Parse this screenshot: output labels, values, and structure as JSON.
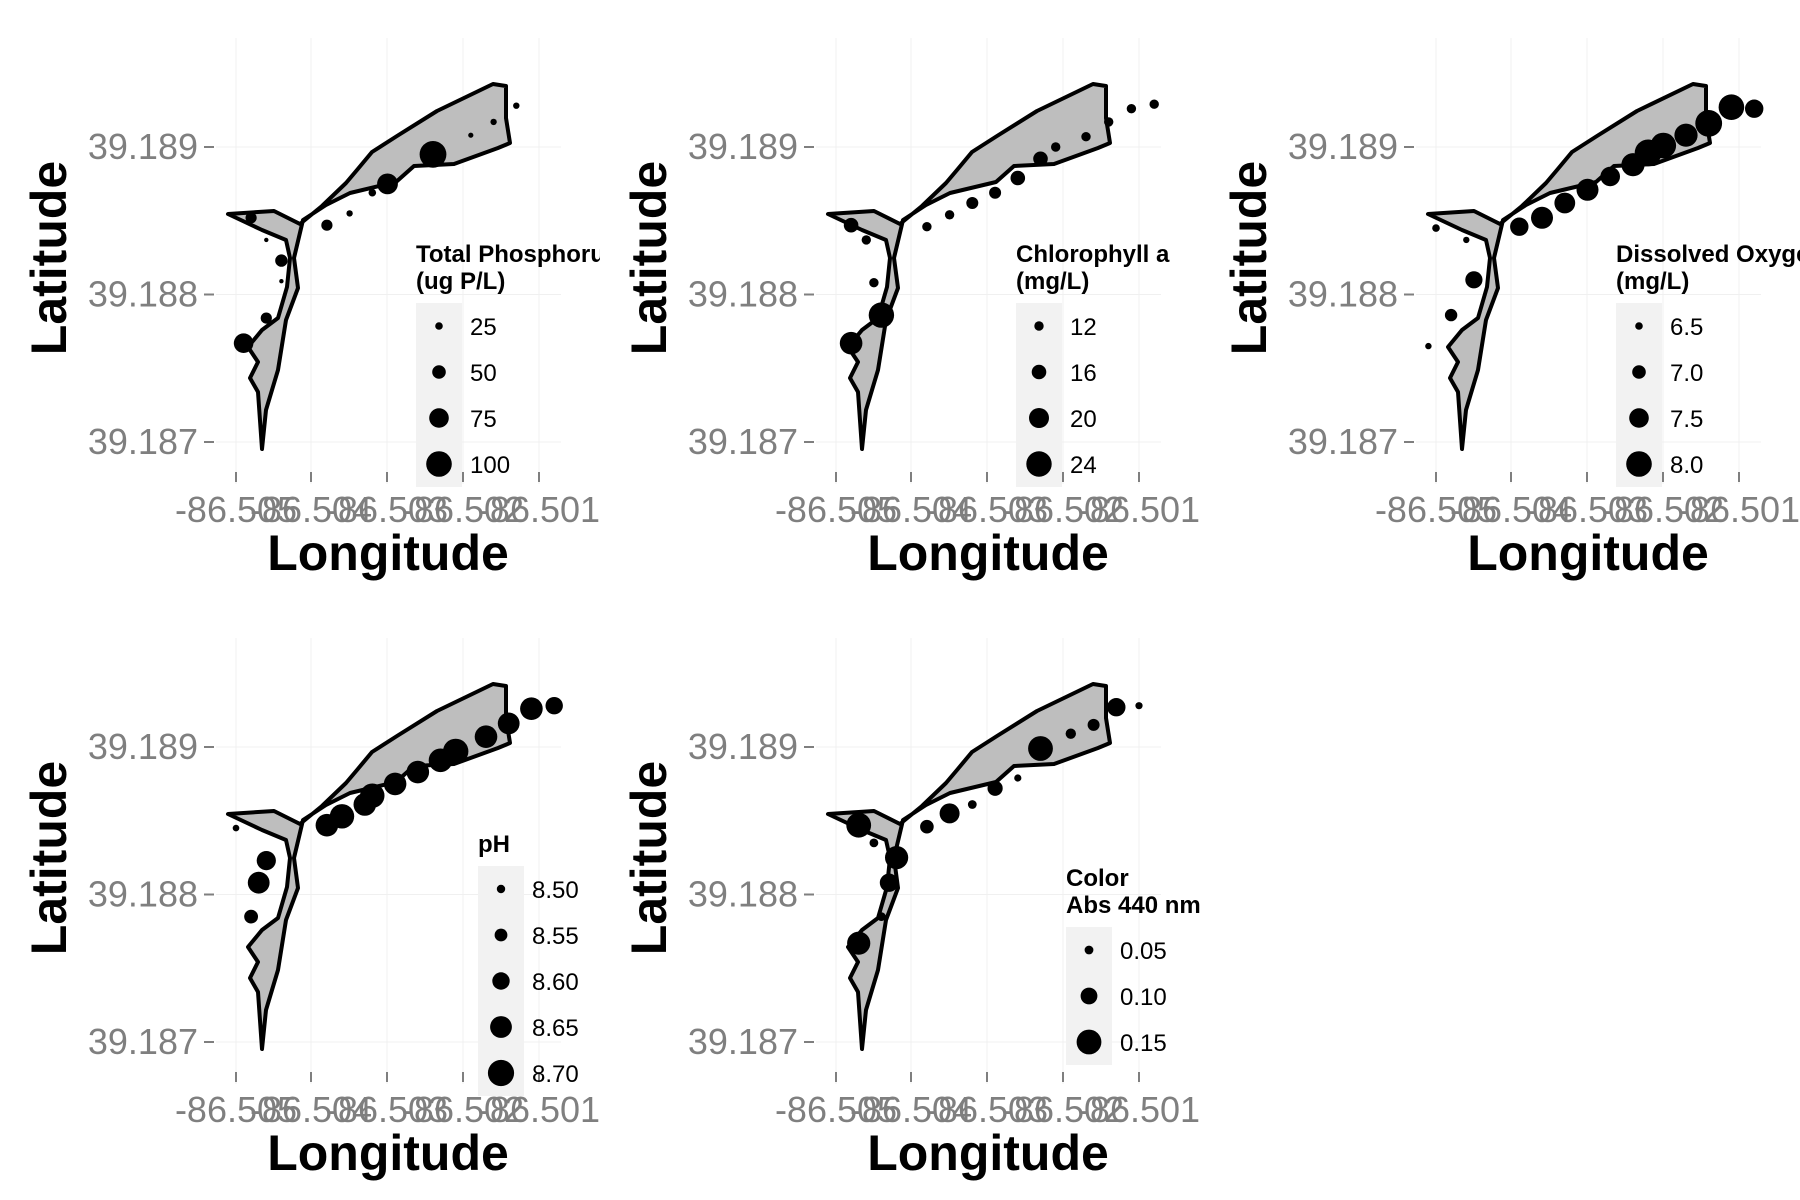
{
  "chart_data": [
    {
      "type": "scatter",
      "xlabel": "Longitude",
      "ylabel": "Latitude",
      "x_tick_labels": [
        "-86.505",
        "-86.504",
        "-86.503",
        "-86.502",
        "-86.501"
      ],
      "y_tick_labels": [
        "39.187",
        "39.188",
        "39.189"
      ],
      "legend": {
        "title_lines": [
          "Total Phosphorus",
          "(ug P/L)"
        ],
        "entries": [
          {
            "label": "25",
            "value": 25
          },
          {
            "label": "50",
            "value": 50
          },
          {
            "label": "75",
            "value": 75
          },
          {
            "label": "100",
            "value": 100
          }
        ]
      },
      "value_range": [
        10,
        110
      ],
      "points": [
        {
          "x": -86.5048,
          "y": 39.18852,
          "v": 40
        },
        {
          "x": -86.5046,
          "y": 39.18837,
          "v": 12
        },
        {
          "x": -86.5044,
          "y": 39.18823,
          "v": 45
        },
        {
          "x": -86.5044,
          "y": 39.18809,
          "v": 12
        },
        {
          "x": -86.5046,
          "y": 39.18784,
          "v": 40
        },
        {
          "x": -86.5049,
          "y": 39.18767,
          "v": 75
        },
        {
          "x": -86.5038,
          "y": 39.18847,
          "v": 40
        },
        {
          "x": -86.5035,
          "y": 39.18855,
          "v": 20
        },
        {
          "x": -86.5032,
          "y": 39.18869,
          "v": 25
        },
        {
          "x": -86.503,
          "y": 39.18875,
          "v": 80
        },
        {
          "x": -86.5024,
          "y": 39.18895,
          "v": 105
        },
        {
          "x": -86.5019,
          "y": 39.18908,
          "v": 15
        },
        {
          "x": -86.5016,
          "y": 39.18917,
          "v": 20
        },
        {
          "x": -86.5013,
          "y": 39.18928,
          "v": 20
        }
      ]
    },
    {
      "type": "scatter",
      "xlabel": "Longitude",
      "ylabel": "Latitude",
      "x_tick_labels": [
        "-86.505",
        "-86.504",
        "-86.503",
        "-86.502",
        "-86.501"
      ],
      "y_tick_labels": [
        "39.187",
        "39.188",
        "39.189"
      ],
      "legend": {
        "title_lines": [
          "Chlorophyll a",
          "(mg/L)"
        ],
        "entries": [
          {
            "label": "12",
            "value": 12
          },
          {
            "label": "16",
            "value": 16
          },
          {
            "label": "20",
            "value": 20
          },
          {
            "label": "24",
            "value": 24
          }
        ]
      },
      "value_range": [
        8,
        26
      ],
      "points": [
        {
          "x": -86.5048,
          "y": 39.18847,
          "v": 16
        },
        {
          "x": -86.5046,
          "y": 39.18837,
          "v": 12
        },
        {
          "x": -86.5045,
          "y": 39.18808,
          "v": 12
        },
        {
          "x": -86.5044,
          "y": 39.18786,
          "v": 24
        },
        {
          "x": -86.5048,
          "y": 39.18767,
          "v": 22
        },
        {
          "x": -86.5038,
          "y": 39.18846,
          "v": 12
        },
        {
          "x": -86.5035,
          "y": 39.18854,
          "v": 12
        },
        {
          "x": -86.5032,
          "y": 39.18862,
          "v": 14
        },
        {
          "x": -86.5029,
          "y": 39.18869,
          "v": 14
        },
        {
          "x": -86.5026,
          "y": 39.18879,
          "v": 16
        },
        {
          "x": -86.5023,
          "y": 39.18892,
          "v": 16
        },
        {
          "x": -86.5021,
          "y": 39.189,
          "v": 12
        },
        {
          "x": -86.5017,
          "y": 39.18907,
          "v": 12
        },
        {
          "x": -86.5014,
          "y": 39.18917,
          "v": 12
        },
        {
          "x": -86.5011,
          "y": 39.18926,
          "v": 12
        },
        {
          "x": -86.5008,
          "y": 39.18929,
          "v": 12
        }
      ]
    },
    {
      "type": "scatter",
      "xlabel": "Longitude",
      "ylabel": "Latitude",
      "x_tick_labels": [
        "-86.505",
        "-86.504",
        "-86.503",
        "-86.502",
        "-86.501"
      ],
      "y_tick_labels": [
        "39.187",
        "39.188",
        "39.189"
      ],
      "legend": {
        "title_lines": [
          "Dissolved Oxygen",
          "(mg/L)"
        ],
        "entries": [
          {
            "label": "6.5",
            "value": 6.5
          },
          {
            "label": "7.0",
            "value": 7.0
          },
          {
            "label": "7.5",
            "value": 7.5
          },
          {
            "label": "8.0",
            "value": 8.0
          }
        ]
      },
      "value_range": [
        6.2,
        8.2
      ],
      "points": [
        {
          "x": -86.505,
          "y": 39.18845,
          "v": 6.5
        },
        {
          "x": -86.5046,
          "y": 39.18837,
          "v": 6.4
        },
        {
          "x": -86.5045,
          "y": 39.1881,
          "v": 7.3
        },
        {
          "x": -86.5048,
          "y": 39.18786,
          "v": 6.9
        },
        {
          "x": -86.5051,
          "y": 39.18765,
          "v": 6.4
        },
        {
          "x": -86.5039,
          "y": 39.18846,
          "v": 7.4
        },
        {
          "x": -86.5036,
          "y": 39.18852,
          "v": 7.7
        },
        {
          "x": -86.5033,
          "y": 39.18862,
          "v": 7.6
        },
        {
          "x": -86.503,
          "y": 39.18871,
          "v": 7.7
        },
        {
          "x": -86.5027,
          "y": 39.1888,
          "v": 7.5
        },
        {
          "x": -86.5024,
          "y": 39.18888,
          "v": 7.8
        },
        {
          "x": -86.5022,
          "y": 39.18896,
          "v": 8.1
        },
        {
          "x": -86.502,
          "y": 39.18901,
          "v": 8.0
        },
        {
          "x": -86.5017,
          "y": 39.18908,
          "v": 7.8
        },
        {
          "x": -86.5014,
          "y": 39.18916,
          "v": 8.1
        },
        {
          "x": -86.5011,
          "y": 39.18927,
          "v": 8.0
        },
        {
          "x": -86.5008,
          "y": 39.18926,
          "v": 7.4
        }
      ]
    },
    {
      "type": "scatter",
      "xlabel": "Longitude",
      "ylabel": "Latitude",
      "x_tick_labels": [
        "-86.505",
        "-86.504",
        "-86.503",
        "-86.502",
        "-86.501"
      ],
      "y_tick_labels": [
        "39.187",
        "39.188",
        "39.189"
      ],
      "legend": {
        "title_lines": [
          "pH"
        ],
        "entries": [
          {
            "label": "8.50",
            "value": 8.5
          },
          {
            "label": "8.55",
            "value": 8.55
          },
          {
            "label": "8.60",
            "value": 8.6
          },
          {
            "label": "8.65",
            "value": 8.65
          },
          {
            "label": "8.70",
            "value": 8.7
          }
        ]
      },
      "value_range": [
        8.45,
        8.72
      ],
      "points": [
        {
          "x": -86.505,
          "y": 39.18845,
          "v": 8.48
        },
        {
          "x": -86.5046,
          "y": 39.18823,
          "v": 8.62
        },
        {
          "x": -86.5047,
          "y": 39.18808,
          "v": 8.65
        },
        {
          "x": -86.5048,
          "y": 39.18785,
          "v": 8.56
        },
        {
          "x": -86.5038,
          "y": 39.18847,
          "v": 8.66
        },
        {
          "x": -86.5036,
          "y": 39.18853,
          "v": 8.68
        },
        {
          "x": -86.5033,
          "y": 39.18861,
          "v": 8.66
        },
        {
          "x": -86.5032,
          "y": 39.18867,
          "v": 8.68
        },
        {
          "x": -86.5029,
          "y": 39.18875,
          "v": 8.66
        },
        {
          "x": -86.5026,
          "y": 39.18883,
          "v": 8.66
        },
        {
          "x": -86.5023,
          "y": 39.18891,
          "v": 8.67
        },
        {
          "x": -86.5021,
          "y": 39.18897,
          "v": 8.69
        },
        {
          "x": -86.5017,
          "y": 39.18907,
          "v": 8.66
        },
        {
          "x": -86.5014,
          "y": 39.18916,
          "v": 8.65
        },
        {
          "x": -86.5011,
          "y": 39.18926,
          "v": 8.66
        },
        {
          "x": -86.5008,
          "y": 39.18928,
          "v": 8.6
        }
      ]
    },
    {
      "type": "scatter",
      "xlabel": "Longitude",
      "ylabel": "Latitude",
      "x_tick_labels": [
        "-86.505",
        "-86.504",
        "-86.503",
        "-86.502",
        "-86.501"
      ],
      "y_tick_labels": [
        "39.187",
        "39.188",
        "39.189"
      ],
      "legend": {
        "title_lines": [
          "Color",
          "Abs 440 nm"
        ],
        "entries": [
          {
            "label": "0.05",
            "value": 0.05
          },
          {
            "label": "0.10",
            "value": 0.1
          },
          {
            "label": "0.15",
            "value": 0.15
          }
        ]
      },
      "value_range": [
        0.02,
        0.17
      ],
      "points": [
        {
          "x": -86.5047,
          "y": 39.18847,
          "v": 0.15
        },
        {
          "x": -86.5045,
          "y": 39.18835,
          "v": 0.05
        },
        {
          "x": -86.5042,
          "y": 39.18825,
          "v": 0.14
        },
        {
          "x": -86.5043,
          "y": 39.18808,
          "v": 0.11
        },
        {
          "x": -86.5044,
          "y": 39.18785,
          "v": 0.05
        },
        {
          "x": -86.5047,
          "y": 39.18767,
          "v": 0.14
        },
        {
          "x": -86.5038,
          "y": 39.18846,
          "v": 0.08
        },
        {
          "x": -86.5035,
          "y": 39.18855,
          "v": 0.12
        },
        {
          "x": -86.5032,
          "y": 39.18861,
          "v": 0.05
        },
        {
          "x": -86.5029,
          "y": 39.18872,
          "v": 0.09
        },
        {
          "x": -86.5026,
          "y": 39.18879,
          "v": 0.04
        },
        {
          "x": -86.5023,
          "y": 39.18899,
          "v": 0.15
        },
        {
          "x": -86.5019,
          "y": 39.18909,
          "v": 0.06
        },
        {
          "x": -86.5016,
          "y": 39.18915,
          "v": 0.07
        },
        {
          "x": -86.5013,
          "y": 39.18927,
          "v": 0.11
        },
        {
          "x": -86.501,
          "y": 39.18928,
          "v": 0.04
        }
      ]
    }
  ]
}
